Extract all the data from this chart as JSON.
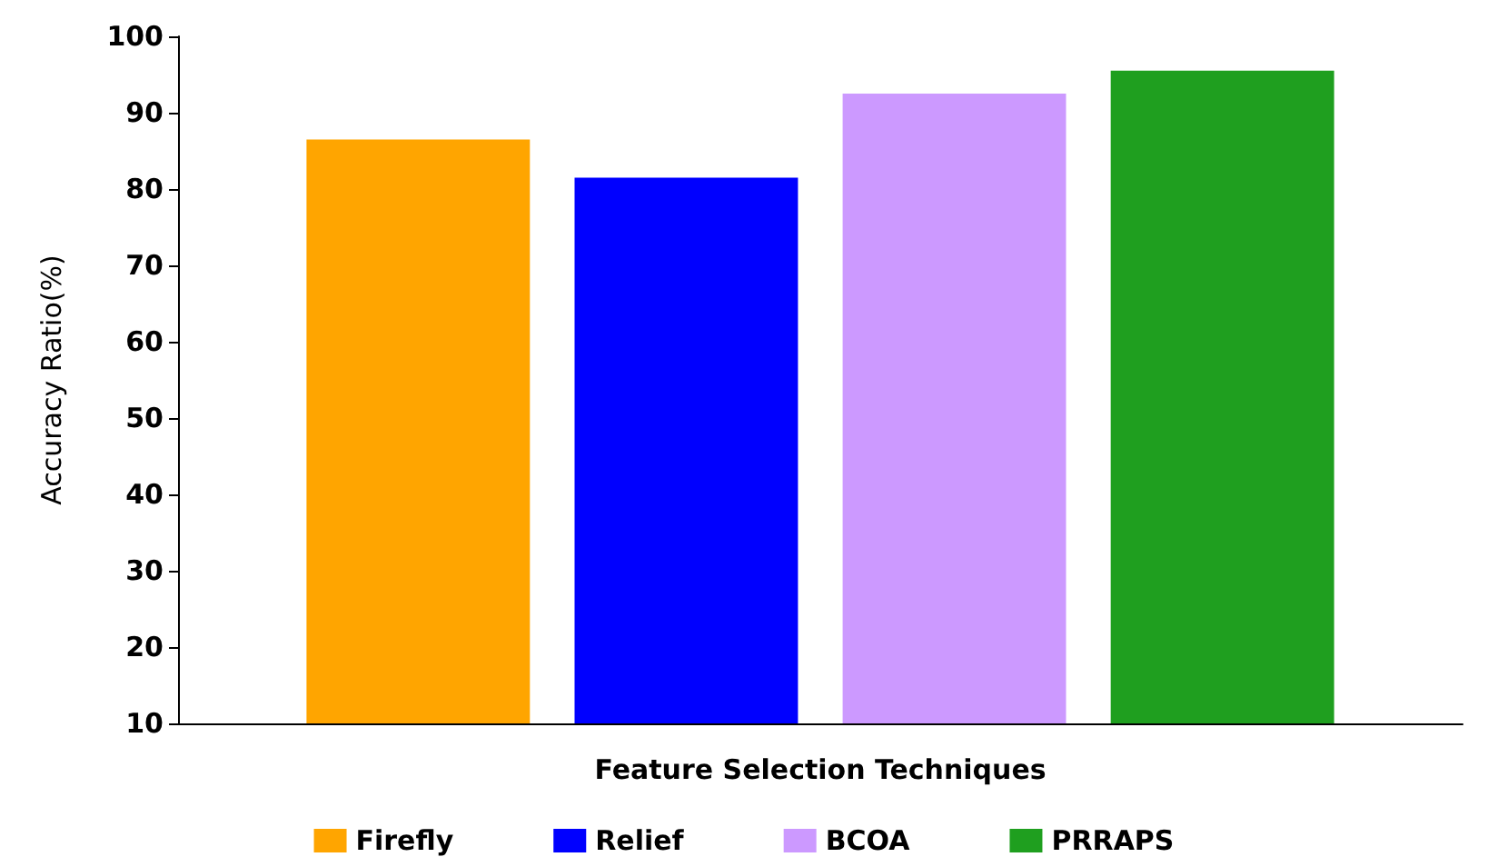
{
  "chart_data": {
    "type": "bar",
    "xlabel": "Feature Selection Techniques",
    "ylabel": "Accuracy Ratio(%)",
    "categories": [
      null
    ],
    "series": [
      {
        "name": "Firefly",
        "color": "#ffa500",
        "values": [
          86.5
        ]
      },
      {
        "name": "Relief",
        "color": "#0000ff",
        "values": [
          81.5
        ]
      },
      {
        "name": "BCOA",
        "color": "#cc99ff",
        "values": [
          92.5
        ]
      },
      {
        "name": "PRRAPS",
        "color": "#1f9f1f",
        "values": [
          95.5
        ]
      }
    ],
    "ylim": [
      10,
      100
    ],
    "yticks": [
      10,
      20,
      30,
      40,
      50,
      60,
      70,
      80,
      90,
      100
    ],
    "grid": false,
    "legend": "bottom"
  }
}
